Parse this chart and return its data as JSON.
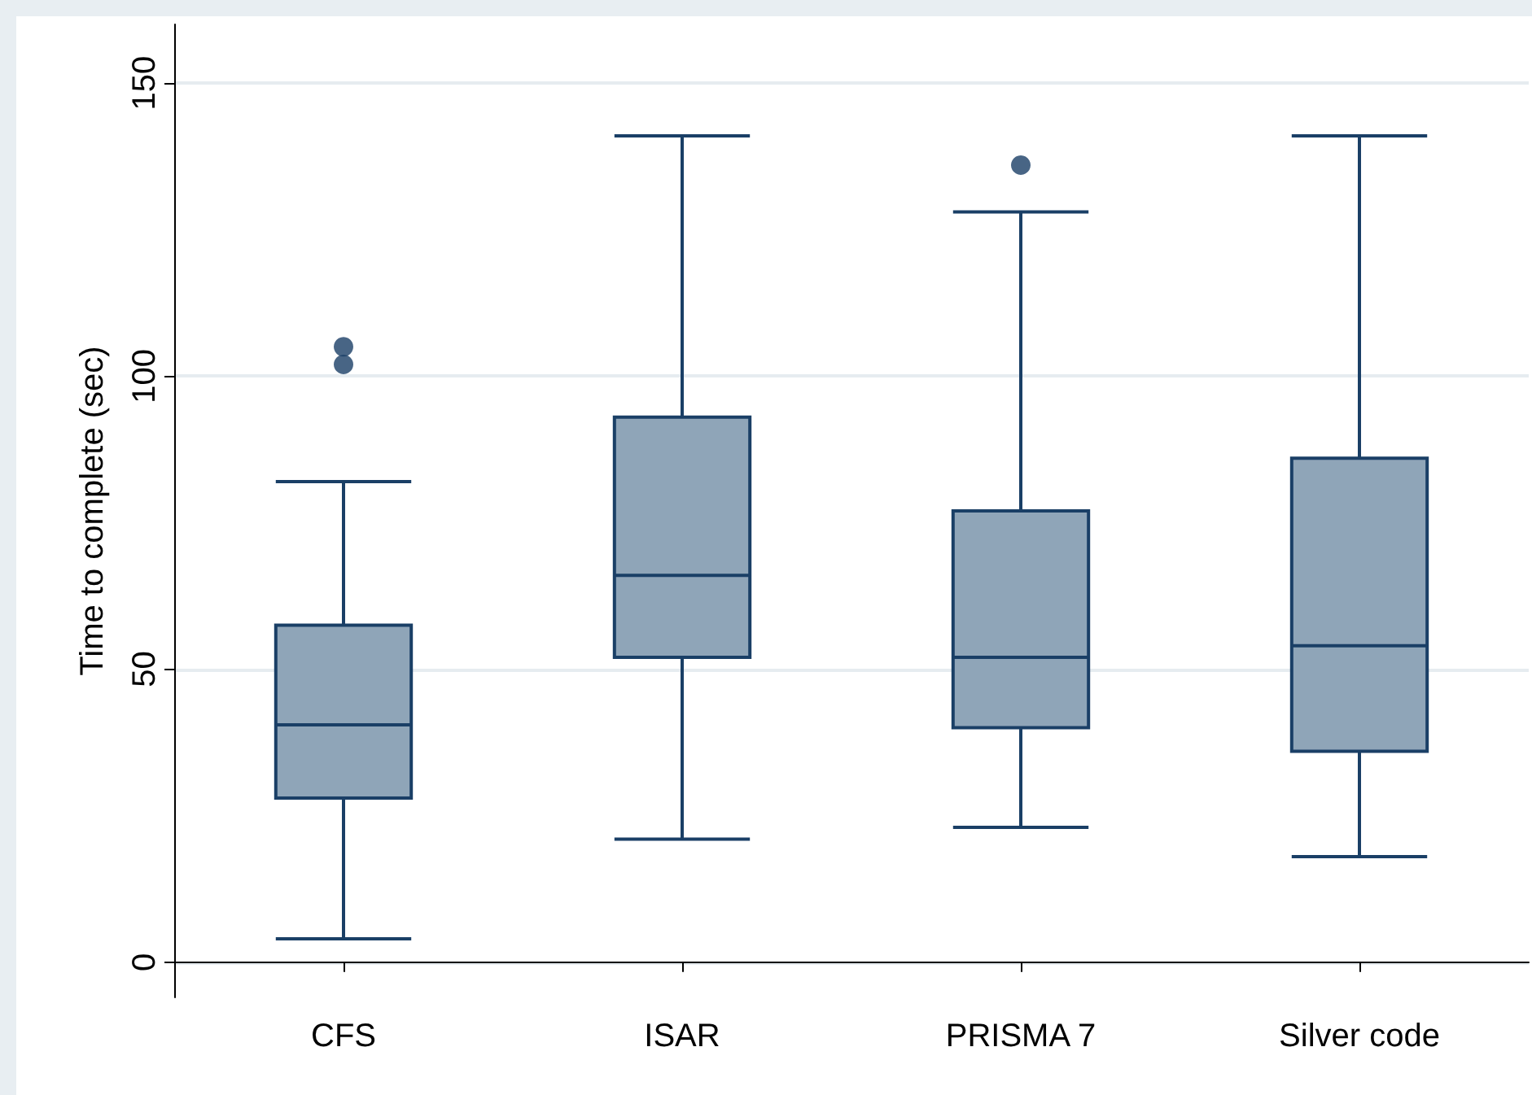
{
  "chart_data": {
    "type": "box",
    "ylabel": "Time to complete (sec)",
    "categories": [
      "CFS",
      "ISAR",
      "PRISMA 7",
      "Silver code"
    ],
    "boxes": [
      {
        "low": 4,
        "q1": 28,
        "median": 40.5,
        "q3": 57.5,
        "high": 82,
        "outliers": [
          102,
          105
        ]
      },
      {
        "low": 21,
        "q1": 52,
        "median": 66,
        "q3": 93,
        "high": 141
      },
      {
        "low": 23,
        "q1": 40,
        "median": 52,
        "q3": 77,
        "high": 128,
        "outliers": [
          136
        ]
      },
      {
        "low": 18,
        "q1": 36,
        "median": 54,
        "q3": 86,
        "high": 141
      }
    ],
    "color": "#8fa5b8",
    "ylim": [
      -6,
      160
    ],
    "yticks": [
      0,
      50,
      100,
      150
    ],
    "grid": "y"
  }
}
